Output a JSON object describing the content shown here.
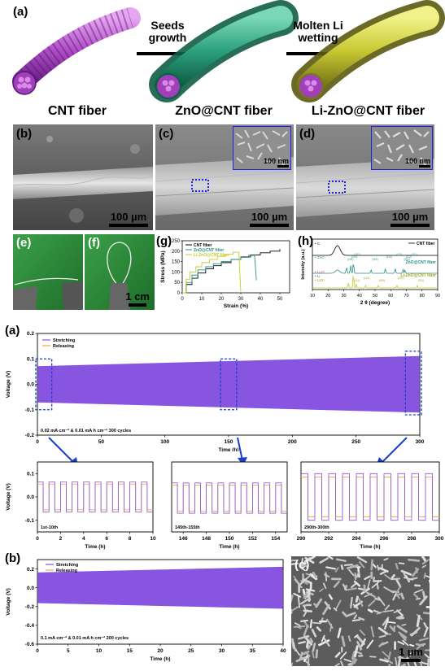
{
  "figure1": {
    "panel_labels": {
      "a": "(a)",
      "b": "(b)",
      "c": "(c)",
      "d": "(d)",
      "e": "(e)",
      "f": "(f)",
      "g": "(g)",
      "h": "(h)"
    },
    "arrow1": [
      "Seeds",
      "growth"
    ],
    "arrow2": [
      "Molten Li",
      "wetting"
    ],
    "captions": [
      "CNT fiber",
      "ZnO@CNT fiber",
      "Li-ZnO@CNT fiber"
    ],
    "scalebars": {
      "b": "100 µm",
      "c": "100 µm",
      "d": "100 µm",
      "c_inset": "100 nm",
      "d_inset": "100 nm",
      "f": "1 cm"
    },
    "colors": {
      "cnt": "#b04fc8",
      "zno": "#2aa07a",
      "lizno": "#c8c832"
    }
  },
  "chart_data": [
    {
      "id": "g",
      "type": "line",
      "xlabel": "Strain (%)",
      "ylabel": "Stress (MPa)",
      "xlim": [
        0,
        55
      ],
      "ylim": [
        0,
        250
      ],
      "xticks": [
        "0",
        "10",
        "20",
        "30",
        "40",
        "50"
      ],
      "yticks": [
        "0",
        "50",
        "100",
        "150",
        "200",
        "250"
      ],
      "series": [
        {
          "name": "CNT fiber",
          "color": "#000000",
          "x": [
            0,
            2,
            2,
            5,
            5,
            8,
            8,
            12,
            12,
            16,
            16,
            20,
            20,
            25,
            25,
            30,
            30,
            35,
            35,
            40,
            40,
            45,
            45,
            50,
            50
          ],
          "y": [
            0,
            0,
            40,
            40,
            70,
            70,
            95,
            95,
            115,
            115,
            130,
            130,
            145,
            145,
            160,
            160,
            172,
            172,
            182,
            182,
            192,
            192,
            200,
            200,
            210
          ]
        },
        {
          "name": "ZnO@CNT fiber",
          "color": "#2a8f86",
          "x": [
            0,
            2,
            2,
            5,
            5,
            8,
            8,
            12,
            12,
            16,
            16,
            20,
            20,
            25,
            25,
            30,
            30,
            34,
            34,
            37,
            37,
            38
          ],
          "y": [
            0,
            0,
            50,
            50,
            85,
            85,
            110,
            110,
            125,
            125,
            140,
            140,
            150,
            150,
            160,
            160,
            170,
            170,
            180,
            180,
            185,
            60
          ]
        },
        {
          "name": "Li-ZnO@CNT fiber",
          "color": "#c8c82a",
          "x": [
            0,
            2,
            2,
            4,
            4,
            7,
            7,
            10,
            10,
            14,
            14,
            18,
            18,
            22,
            22,
            26,
            26,
            29,
            29,
            30
          ],
          "y": [
            0,
            0,
            65,
            65,
            100,
            100,
            125,
            125,
            145,
            145,
            160,
            160,
            175,
            175,
            185,
            185,
            195,
            195,
            195,
            0
          ]
        }
      ]
    },
    {
      "id": "h",
      "type": "line",
      "xlabel": "2 θ (degree)",
      "ylabel": "Intensity (a.u.)",
      "xlim": [
        10,
        90
      ],
      "xticks": [
        "10",
        "20",
        "30",
        "40",
        "50",
        "60",
        "70",
        "80",
        "90"
      ],
      "series": [
        {
          "name": "CNT fiber",
          "color": "#000000"
        },
        {
          "name": "ZnO@CNT fiber",
          "color": "#2a8f86"
        },
        {
          "name": "Li-ZnO@CNT fiber",
          "color": "#c8c82a"
        }
      ],
      "markers": {
        "C": "C",
        "ZnO": "ZnO",
        "Li2O": "Li₂O",
        "Li": "Li",
        "LiZn": "LiZn"
      },
      "zno_peaks": [
        "(100)",
        "(002)",
        "(101)",
        "(102)",
        "(110)",
        "(103)",
        "(200)",
        "(112)",
        "(201)"
      ],
      "lizno_peaks": [
        "(111)",
        "(110)",
        "(200)",
        "(220)",
        "(311)"
      ]
    },
    {
      "id": "a_main",
      "type": "line",
      "xlabel": "Time (h)",
      "ylabel": "Voltage (V)",
      "xlim": [
        0,
        300
      ],
      "ylim": [
        -0.2,
        0.2
      ],
      "xticks": [
        "0",
        "50",
        "100",
        "150",
        "200",
        "250",
        "300"
      ],
      "yticks": [
        "-0.2",
        "-0.1",
        "0.0",
        "0.1",
        "0.2"
      ],
      "legend": [
        "Stretching",
        "Releasing"
      ],
      "annotation": "0.02 mA cm⁻² & 0.01 mA h cm⁻² 300 cycles",
      "amplitude_start": 0.07,
      "amplitude_end": 0.11
    },
    {
      "id": "a_inset1",
      "type": "line",
      "xlabel": "Time (h)",
      "ylabel": "Voltage (V)",
      "xlim": [
        0,
        10
      ],
      "ylim": [
        -0.15,
        0.15
      ],
      "xticks": [
        "0",
        "2",
        "4",
        "6",
        "8",
        "10"
      ],
      "yticks": [
        "-0.1",
        "0.0",
        "0.1"
      ],
      "label": "1st-10th",
      "amplitude": 0.065
    },
    {
      "id": "a_inset2",
      "type": "line",
      "xlabel": "Time (h)",
      "xlim": [
        145,
        155
      ],
      "ylim": [
        -0.15,
        0.15
      ],
      "xticks": [
        "146",
        "148",
        "150",
        "152",
        "154"
      ],
      "label": "145th-155th",
      "amplitude": 0.065
    },
    {
      "id": "a_inset3",
      "type": "line",
      "xlabel": "Time (h)",
      "xlim": [
        290,
        300
      ],
      "ylim": [
        -0.15,
        0.15
      ],
      "xticks": [
        "290",
        "292",
        "294",
        "296",
        "298",
        "300"
      ],
      "label": "290th-300th",
      "amplitude": 0.1
    },
    {
      "id": "b",
      "type": "line",
      "xlabel": "Time (h)",
      "ylabel": "Voltage (V)",
      "xlim": [
        0,
        40
      ],
      "ylim": [
        -0.6,
        0.3
      ],
      "xticks": [
        "0",
        "5",
        "10",
        "15",
        "20",
        "25",
        "30",
        "35",
        "40"
      ],
      "yticks": [
        "-0.6",
        "-0.4",
        "-0.2",
        "0.0",
        "0.2"
      ],
      "legend": [
        "Stretching",
        "Releasing"
      ],
      "annotation": "0.1 mA cm⁻² & 0.01 mA h cm⁻² 200 cycles",
      "amplitude_start": 0.16,
      "amplitude_end": 0.22
    }
  ],
  "figure2": {
    "panel_labels": {
      "a": "(a)",
      "b": "(b)",
      "c": "(c)"
    },
    "c_scale": "1 µm",
    "stretch_color": "#8855e0",
    "release_color": "#f0a840"
  }
}
